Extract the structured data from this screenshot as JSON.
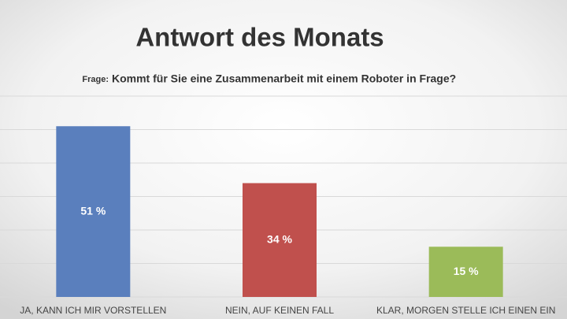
{
  "chart_data": {
    "type": "bar",
    "title": "Antwort des Monats",
    "subtitle_label": "Frage:",
    "subtitle": "Kommt für Sie eine Zusammenarbeit mit einem Roboter in Frage?",
    "categories": [
      "JA, KANN ICH MIR VORSTELLEN",
      "NEIN, AUF KEINEN FALL",
      "KLAR, MORGEN STELLE ICH EINEN EIN"
    ],
    "values": [
      51,
      34,
      15
    ],
    "value_labels": [
      "51 %",
      "34 %",
      "15 %"
    ],
    "colors": [
      "#5a7fbd",
      "#c0504d",
      "#9bbb59"
    ],
    "ylim": [
      0,
      60
    ],
    "yticks": [
      0,
      10,
      20,
      30,
      40,
      50,
      60
    ],
    "grid": true
  }
}
